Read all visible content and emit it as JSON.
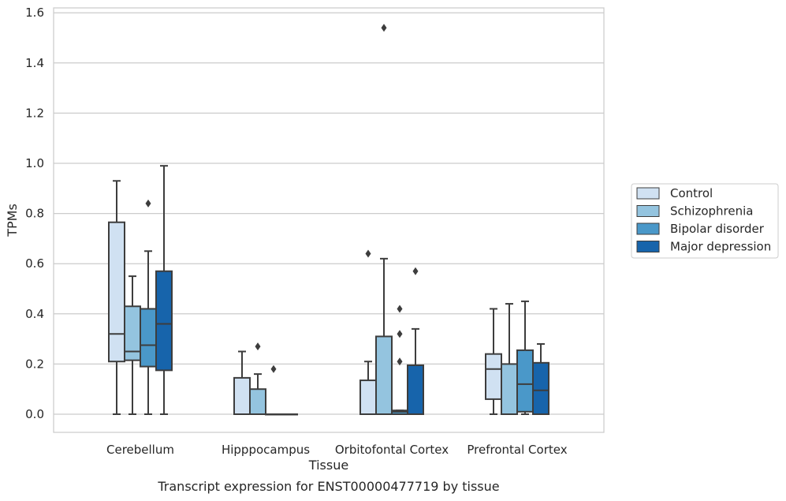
{
  "chart_data": {
    "type": "box",
    "xlabel": "Tissue",
    "ylabel": "TPMs",
    "caption": "Transcript expression for ENST00000477719 by tissue",
    "ylim": [
      -0.075,
      1.62
    ],
    "yticks": [
      0.0,
      0.2,
      0.4,
      0.6,
      0.8,
      1.0,
      1.2,
      1.4,
      1.6
    ],
    "ytick_labels": [
      "0.0",
      "0.2",
      "0.4",
      "0.6",
      "0.8",
      "1.0",
      "1.2",
      "1.4",
      "1.6"
    ],
    "grid": "horizontal",
    "legend_position": "right",
    "categories": [
      "Cerebellum",
      "Hipppocampus",
      "Orbitofontal Cortex",
      "Prefrontal Cortex"
    ],
    "series": [
      {
        "name": "Control",
        "color": "#d0e1f2",
        "boxes": [
          {
            "whisker_low": 0.0,
            "q1": 0.21,
            "median": 0.32,
            "q3": 0.765,
            "whisker_high": 0.93,
            "outliers": []
          },
          {
            "whisker_low": 0.0,
            "q1": 0.0,
            "median": 0.0,
            "q3": 0.145,
            "whisker_high": 0.25,
            "outliers": []
          },
          {
            "whisker_low": 0.0,
            "q1": 0.0,
            "median": 0.0,
            "q3": 0.135,
            "whisker_high": 0.21,
            "outliers": [
              0.64
            ]
          },
          {
            "whisker_low": 0.0,
            "q1": 0.06,
            "median": 0.18,
            "q3": 0.24,
            "whisker_high": 0.42,
            "outliers": []
          }
        ]
      },
      {
        "name": "Schizophrenia",
        "color": "#94c4df",
        "boxes": [
          {
            "whisker_low": 0.0,
            "q1": 0.215,
            "median": 0.25,
            "q3": 0.43,
            "whisker_high": 0.55,
            "outliers": []
          },
          {
            "whisker_low": 0.0,
            "q1": 0.0,
            "median": 0.0,
            "q3": 0.1,
            "whisker_high": 0.16,
            "outliers": [
              0.27
            ]
          },
          {
            "whisker_low": 0.0,
            "q1": 0.0,
            "median": 0.0,
            "q3": 0.31,
            "whisker_high": 0.62,
            "outliers": [
              1.54
            ]
          },
          {
            "whisker_low": 0.0,
            "q1": 0.0,
            "median": 0.0,
            "q3": 0.2,
            "whisker_high": 0.44,
            "outliers": []
          }
        ]
      },
      {
        "name": "Bipolar disorder",
        "color": "#4a98c9",
        "boxes": [
          {
            "whisker_low": 0.0,
            "q1": 0.19,
            "median": 0.275,
            "q3": 0.42,
            "whisker_high": 0.65,
            "outliers": [
              0.84
            ]
          },
          {
            "whisker_low": 0.0,
            "q1": 0.0,
            "median": 0.0,
            "q3": 0.0,
            "whisker_high": 0.0,
            "outliers": [
              0.18
            ]
          },
          {
            "whisker_low": 0.0,
            "q1": 0.0,
            "median": 0.01,
            "q3": 0.015,
            "whisker_high": 0.015,
            "outliers": [
              0.21,
              0.32,
              0.42
            ]
          },
          {
            "whisker_low": 0.0,
            "q1": 0.01,
            "median": 0.12,
            "q3": 0.255,
            "whisker_high": 0.45,
            "outliers": []
          }
        ]
      },
      {
        "name": "Major depression",
        "color": "#1764ab",
        "boxes": [
          {
            "whisker_low": 0.0,
            "q1": 0.175,
            "median": 0.36,
            "q3": 0.57,
            "whisker_high": 0.99,
            "outliers": []
          },
          {
            "whisker_low": 0.0,
            "q1": 0.0,
            "median": 0.0,
            "q3": 0.0,
            "whisker_high": 0.0,
            "outliers": []
          },
          {
            "whisker_low": 0.0,
            "q1": 0.0,
            "median": 0.0,
            "q3": 0.195,
            "whisker_high": 0.34,
            "outliers": [
              0.57
            ]
          },
          {
            "whisker_low": 0.0,
            "q1": 0.0,
            "median": 0.095,
            "q3": 0.205,
            "whisker_high": 0.28,
            "outliers": []
          }
        ]
      }
    ]
  }
}
